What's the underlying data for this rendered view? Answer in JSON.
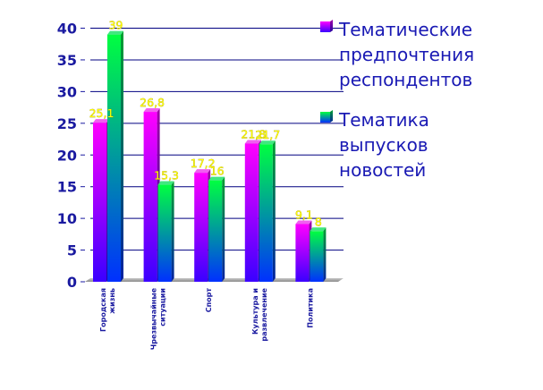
{
  "chart_data": {
    "type": "bar",
    "title": "",
    "xlabel": "",
    "ylabel": "",
    "ylim": [
      0,
      40
    ],
    "yticks": [
      0,
      5,
      10,
      15,
      20,
      25,
      30,
      35,
      40
    ],
    "grid": true,
    "legend_position": "right",
    "categories": [
      [
        "Городская",
        "жизнь"
      ],
      [
        "Чрезвычайные",
        "ситуации"
      ],
      [
        "Спорт"
      ],
      [
        "Культура и",
        "развлечение"
      ],
      [
        "Политика"
      ]
    ],
    "series": [
      {
        "name": [
          "Тематические",
          "предпочтения",
          "респондентов"
        ],
        "values": [
          25.1,
          26.8,
          17.2,
          21.8,
          9.1
        ],
        "labels": [
          "25,1",
          "26,8",
          "17,2",
          "21,8",
          "9,1"
        ]
      },
      {
        "name": [
          "Тематика",
          "выпусков",
          "новостей"
        ],
        "values": [
          39,
          15.3,
          16,
          21.7,
          8
        ],
        "labels": [
          "39",
          "15,3",
          "16",
          "21,7",
          "8"
        ]
      }
    ],
    "colors": {
      "series1_top": "#ff00ff",
      "series1_bottom": "#3a00ff",
      "series2_top": "#00ff40",
      "series2_bottom": "#0030ff",
      "axis_text": "#1a1aa0",
      "legend_text": "#1a1ab4",
      "grid": "#000080",
      "data_label": "#ffff00"
    }
  }
}
